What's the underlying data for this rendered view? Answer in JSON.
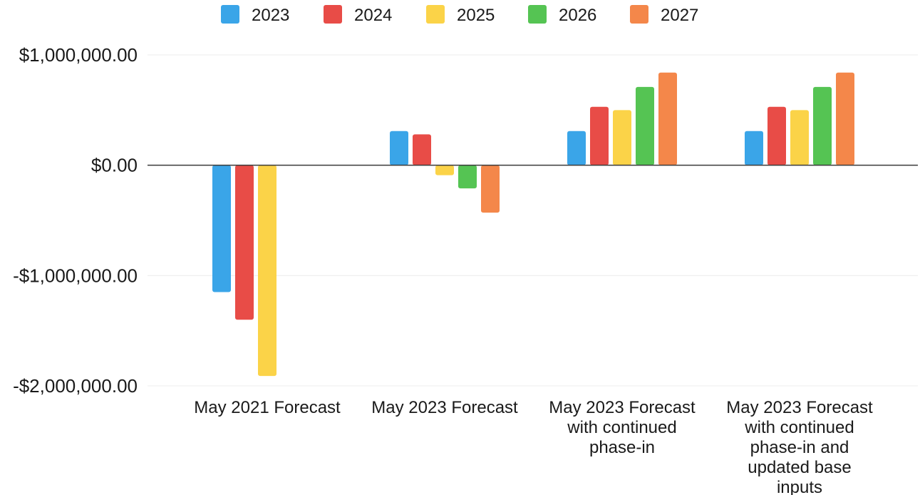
{
  "chart_data": {
    "type": "bar",
    "title": "",
    "xlabel": "",
    "ylabel": "",
    "ylim": [
      -2000000,
      1000000
    ],
    "y_ticks": [
      1000000,
      0,
      -1000000,
      -2000000
    ],
    "y_tick_labels": [
      "$1,000,000.00",
      "$0.00",
      "-$1,000,000.00",
      "-$2,000,000.00"
    ],
    "grid": true,
    "legend_position": "top-center",
    "categories": [
      "May 2021 Forecast",
      "May 2023 Forecast",
      "May 2023 Forecast with continued phase-in",
      "May 2023 Forecast with continued phase-in and updated base inputs"
    ],
    "category_label_lines": [
      [
        "May 2021 Forecast"
      ],
      [
        "May 2023 Forecast"
      ],
      [
        "May 2023 Forecast",
        "with continued",
        "phase-in"
      ],
      [
        "May 2023 Forecast",
        "with continued",
        "phase-in and",
        "updated base",
        "inputs"
      ]
    ],
    "series": [
      {
        "name": "2023",
        "color": "#3aa5e8",
        "values": [
          -1150000,
          310000,
          310000,
          310000
        ]
      },
      {
        "name": "2024",
        "color": "#e84c47",
        "values": [
          -1400000,
          280000,
          530000,
          530000
        ]
      },
      {
        "name": "2025",
        "color": "#fbd348",
        "values": [
          -1910000,
          -90000,
          500000,
          500000
        ]
      },
      {
        "name": "2026",
        "color": "#55c453",
        "values": [
          null,
          -210000,
          710000,
          710000
        ]
      },
      {
        "name": "2027",
        "color": "#f4874a",
        "values": [
          null,
          -430000,
          840000,
          840000
        ]
      }
    ]
  }
}
